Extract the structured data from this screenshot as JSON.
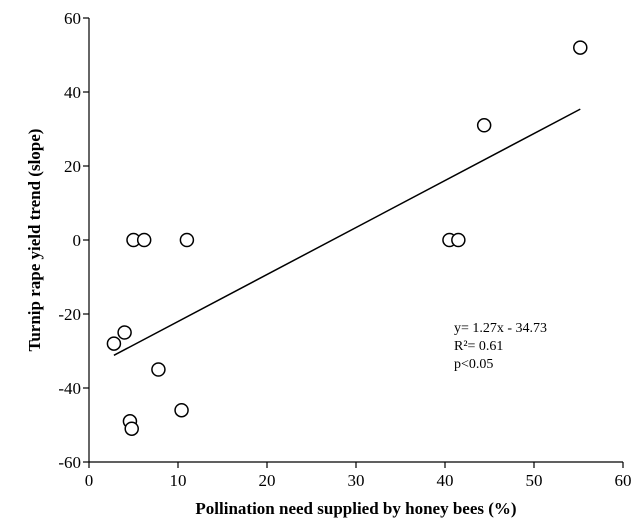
{
  "chart_data": {
    "type": "scatter",
    "title": "",
    "xlabel": "Pollination need supplied by honey bees (%)",
    "ylabel": "Turnip rape yield trend (slope)",
    "xlim": [
      0,
      60
    ],
    "ylim": [
      -60,
      60
    ],
    "x_ticks": [
      0,
      10,
      20,
      30,
      40,
      50,
      60
    ],
    "y_ticks": [
      -60,
      -40,
      -20,
      0,
      20,
      40,
      60
    ],
    "grid": false,
    "marker": "open-circle",
    "points": [
      {
        "x": 2.8,
        "y": -28
      },
      {
        "x": 4.0,
        "y": -25
      },
      {
        "x": 4.6,
        "y": -49
      },
      {
        "x": 4.8,
        "y": -51
      },
      {
        "x": 5.0,
        "y": 0
      },
      {
        "x": 6.2,
        "y": 0
      },
      {
        "x": 7.8,
        "y": -35
      },
      {
        "x": 10.4,
        "y": -46
      },
      {
        "x": 11.0,
        "y": 0
      },
      {
        "x": 40.5,
        "y": 0
      },
      {
        "x": 41.5,
        "y": 0
      },
      {
        "x": 44.4,
        "y": 31
      },
      {
        "x": 55.2,
        "y": 52
      }
    ],
    "trendline": {
      "slope": 1.27,
      "intercept": -34.73,
      "x_start": 2.8,
      "x_end": 55.2
    },
    "annotation_lines": [
      "y= 1.27x - 34.73",
      "R²= 0.61",
      "p<0.05"
    ]
  }
}
